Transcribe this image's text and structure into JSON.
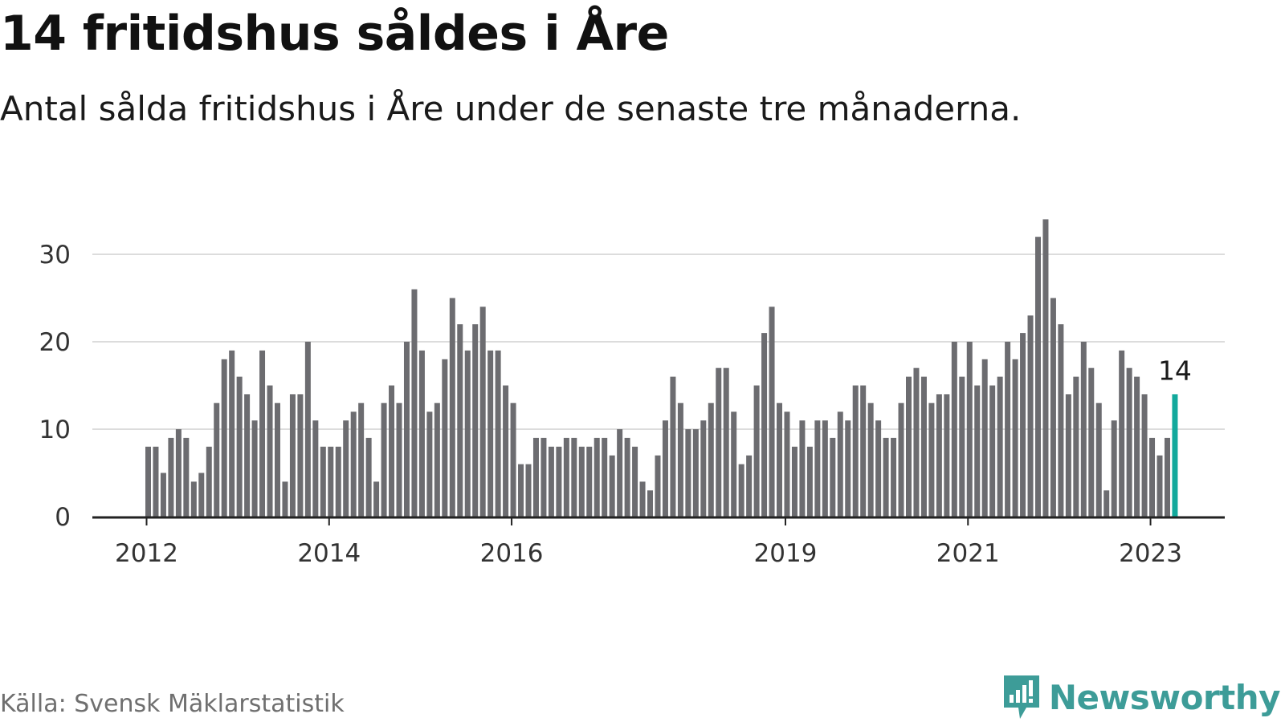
{
  "header": {
    "title": "14 fritidshus såldes i Åre",
    "subtitle": "Antal sålda fritidshus i Åre under de senaste tre månaderna."
  },
  "footer": {
    "source": "Källa: Svensk Mäklarstatistik",
    "brand": "Newsworthy"
  },
  "colors": {
    "bar": "#6c6c70",
    "highlight": "#12a99c",
    "grid": "#dcdcdc",
    "axis": "#222222",
    "brand": "#3d9c98"
  },
  "chart_data": {
    "type": "bar",
    "title": "14 fritidshus såldes i Åre",
    "subtitle": "Antal sålda fritidshus i Åre under de senaste tre månaderna.",
    "xlabel": "",
    "ylabel": "",
    "ylim": [
      0,
      35
    ],
    "yticks": [
      0,
      10,
      20,
      30
    ],
    "grid": true,
    "x_start": "2012-01",
    "frequency": "monthly",
    "xtick_labels": [
      {
        "label": "2012",
        "index": 0
      },
      {
        "label": "2014",
        "index": 24
      },
      {
        "label": "2016",
        "index": 48
      },
      {
        "label": "2019",
        "index": 84
      },
      {
        "label": "2021",
        "index": 108
      },
      {
        "label": "2023",
        "index": 132
      }
    ],
    "values": [
      8,
      8,
      5,
      9,
      10,
      9,
      4,
      5,
      8,
      13,
      18,
      19,
      16,
      14,
      11,
      19,
      15,
      13,
      4,
      14,
      14,
      20,
      11,
      8,
      8,
      8,
      11,
      12,
      13,
      9,
      4,
      13,
      15,
      13,
      20,
      26,
      19,
      12,
      13,
      18,
      25,
      22,
      19,
      22,
      24,
      19,
      19,
      15,
      13,
      6,
      6,
      9,
      9,
      8,
      8,
      9,
      9,
      8,
      8,
      9,
      9,
      7,
      10,
      9,
      8,
      4,
      3,
      7,
      11,
      16,
      13,
      10,
      10,
      11,
      13,
      17,
      17,
      12,
      6,
      7,
      15,
      21,
      24,
      13,
      12,
      8,
      11,
      8,
      11,
      11,
      9,
      12,
      11,
      15,
      15,
      13,
      11,
      9,
      9,
      13,
      16,
      17,
      16,
      13,
      14,
      14,
      20,
      16,
      20,
      15,
      18,
      15,
      16,
      20,
      18,
      21,
      23,
      32,
      34,
      25,
      22,
      14,
      16,
      20,
      17,
      13,
      3,
      11,
      19,
      17,
      16,
      14,
      9,
      7,
      9,
      14
    ],
    "highlight_index": 135,
    "annotation": "14"
  }
}
